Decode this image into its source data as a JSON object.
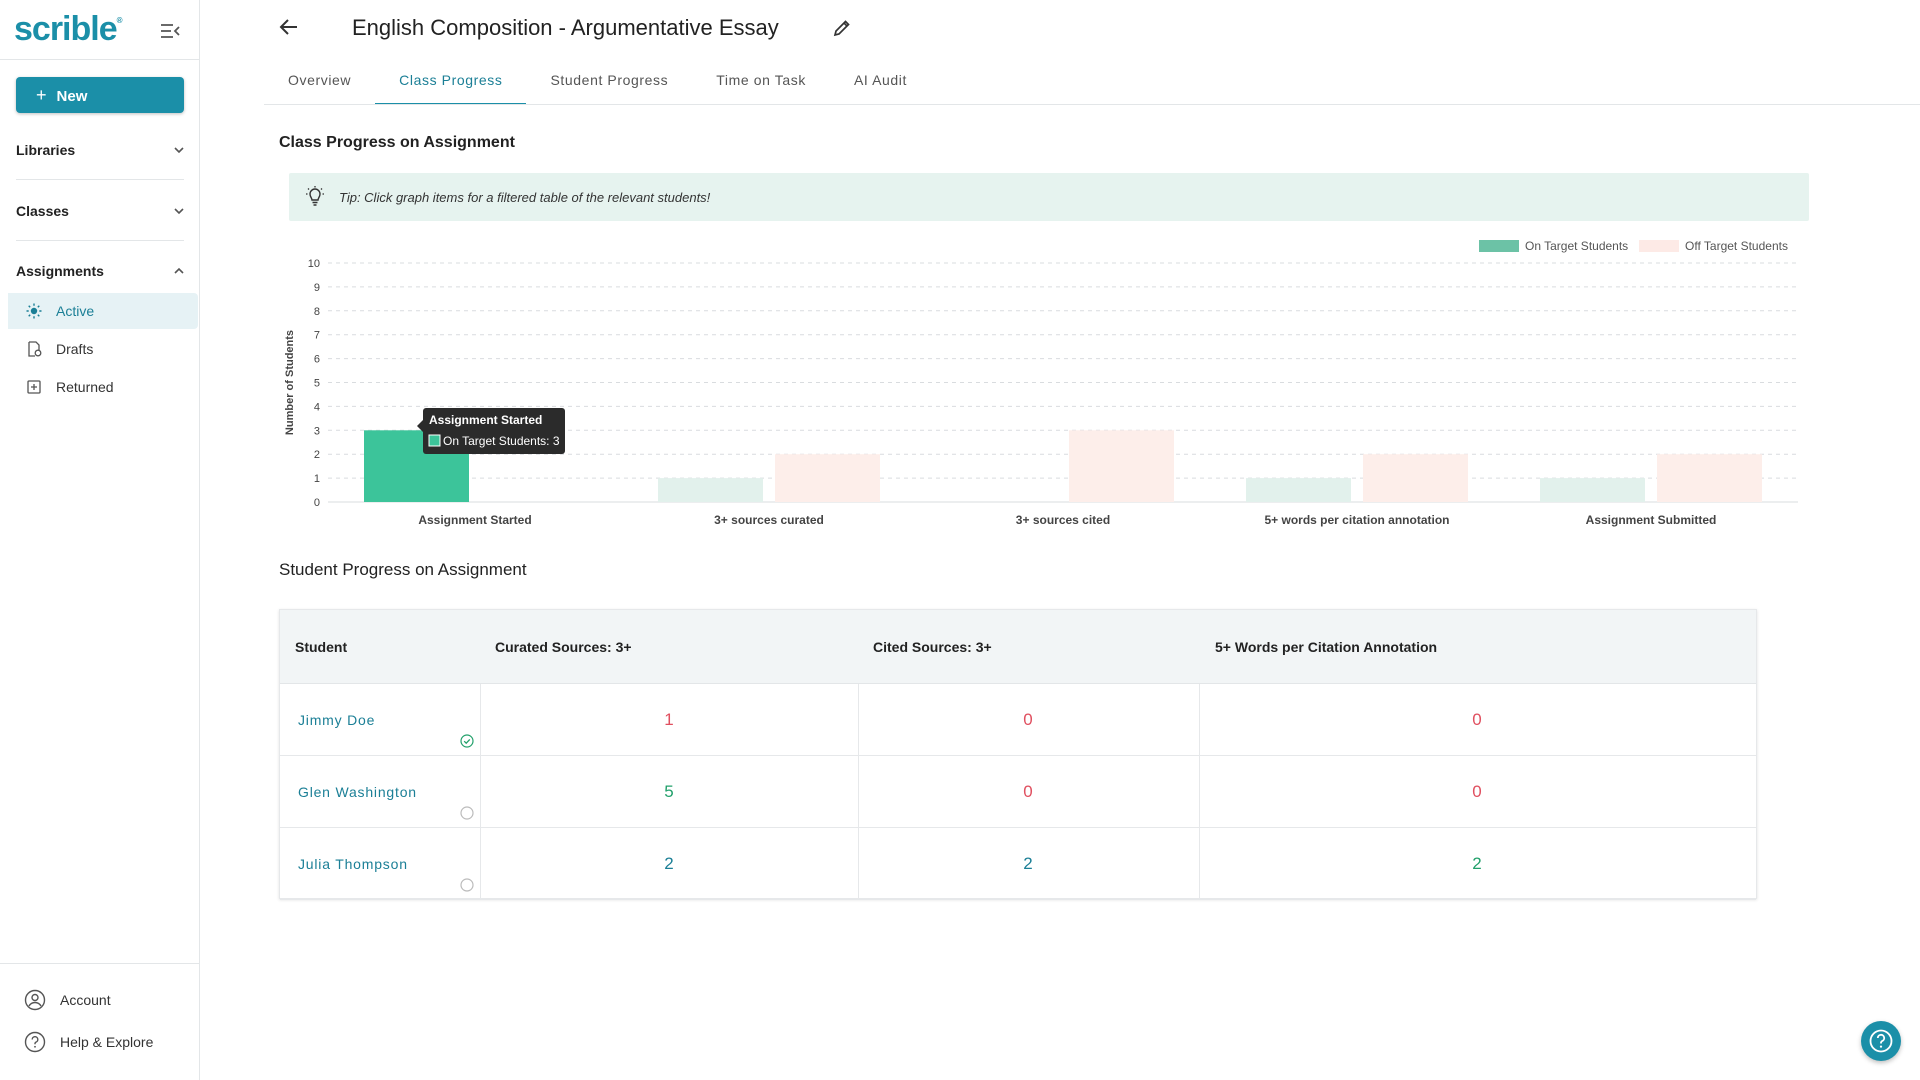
{
  "app": {
    "logo": "scrible"
  },
  "sidebar": {
    "new_label": "New",
    "sections": [
      {
        "label": "Libraries"
      },
      {
        "label": "Classes"
      },
      {
        "label": "Assignments"
      }
    ],
    "items": [
      {
        "label": "Active",
        "icon": "sun-icon",
        "active": true
      },
      {
        "label": "Drafts",
        "icon": "drafts-icon"
      },
      {
        "label": "Returned",
        "icon": "returned-icon"
      }
    ],
    "bottom": [
      {
        "label": "Account",
        "icon": "account-icon"
      },
      {
        "label": "Help & Explore",
        "icon": "help-icon"
      }
    ]
  },
  "header": {
    "title": "English Composition - Argumentative Essay",
    "tabs": [
      {
        "label": "Overview"
      },
      {
        "label": "Class Progress",
        "active": true
      },
      {
        "label": "Student Progress"
      },
      {
        "label": "Time on Task"
      },
      {
        "label": "AI Audit"
      }
    ]
  },
  "class_progress": {
    "title": "Class Progress on Assignment",
    "tip": "Tip: Click graph items for a filtered table of the relevant students!"
  },
  "chart_data": {
    "type": "bar",
    "ylabel": "Number of Students",
    "ylim": [
      0,
      10
    ],
    "grid": true,
    "legend": "top-right",
    "categories": [
      "Assignment Started",
      "3+ sources curated",
      "3+ sources cited",
      "5+ words per citation annotation",
      "Assignment Submitted"
    ],
    "series": [
      {
        "name": "On Target Students",
        "color": "#3cc49a",
        "legend_color": "#6cc2a6",
        "values": [
          3,
          1,
          0,
          1,
          1
        ]
      },
      {
        "name": "Off Target Students",
        "color": "#fdeeea",
        "legend_color": "#fdeae6",
        "values": [
          0,
          2,
          3,
          2,
          2
        ]
      }
    ],
    "tooltip": {
      "title": "Assignment Started",
      "line": "On Target Students: 3"
    }
  },
  "student_progress": {
    "title": "Student Progress on Assignment",
    "columns": [
      "Student",
      "Curated Sources: 3+",
      "Cited Sources: 3+",
      "5+ Words per Citation Annotation"
    ],
    "rows": [
      {
        "name": "Jimmy Doe",
        "status": "check-circle-icon",
        "values": [
          "1",
          "0",
          "0"
        ],
        "tones": [
          "red",
          "red",
          "red"
        ]
      },
      {
        "name": "Glen Washington",
        "status": "empty-circle-icon",
        "values": [
          "5",
          "0",
          "0"
        ],
        "tones": [
          "green",
          "red",
          "red"
        ]
      },
      {
        "name": "Julia Thompson",
        "status": "empty-circle-icon",
        "values": [
          "2",
          "2",
          "2"
        ],
        "tones": [
          "blue",
          "blue",
          "green"
        ]
      }
    ]
  },
  "colors": {
    "accent": "#1b8fa8",
    "red": "#e04f5f",
    "green": "#22a06b",
    "blue": "#1b7f96"
  }
}
